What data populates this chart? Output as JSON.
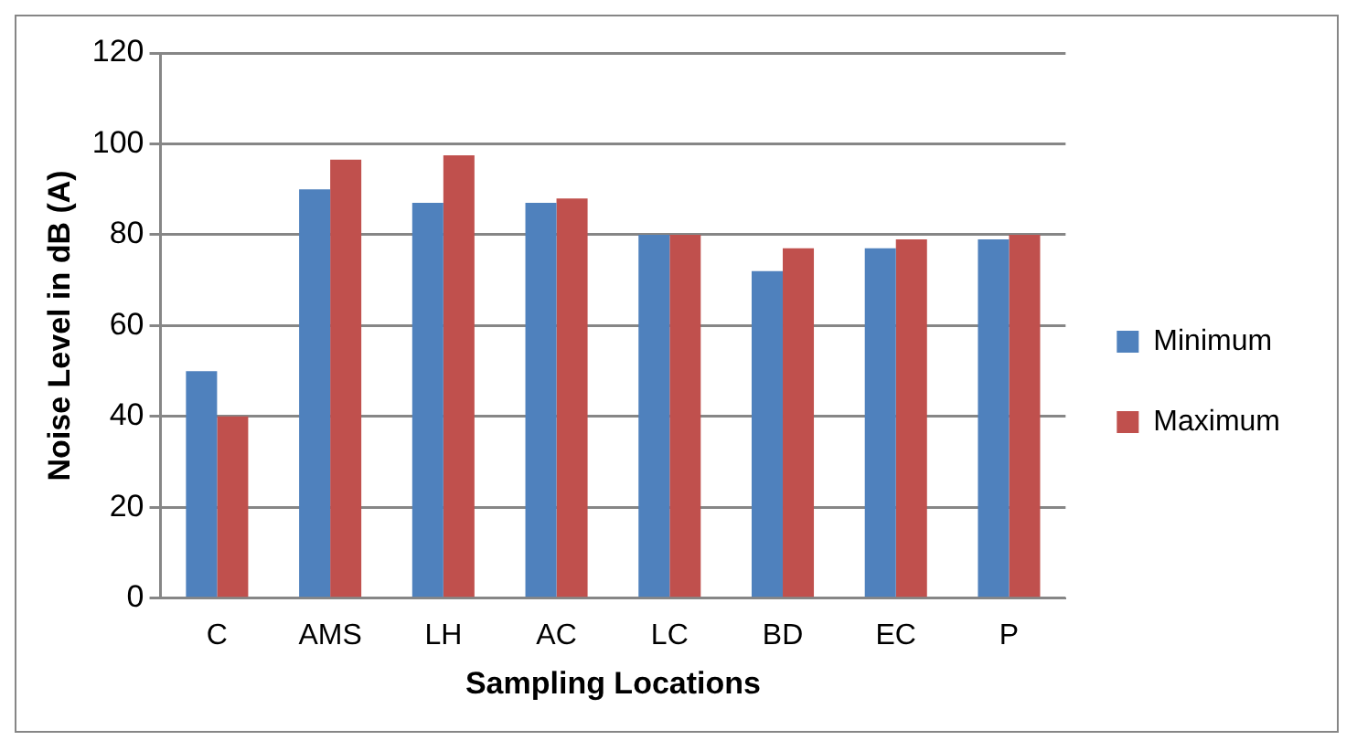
{
  "chart_data": {
    "type": "bar",
    "xlabel": "Sampling Locations",
    "ylabel": "Noise Level in dB (A)",
    "categories": [
      "C",
      "AMS",
      "LH",
      "AC",
      "LC",
      "BD",
      "EC",
      "P"
    ],
    "series": [
      {
        "name": "Minimum",
        "color": "#4f81bd",
        "values": [
          50,
          90,
          87,
          87,
          80,
          72,
          77,
          79
        ]
      },
      {
        "name": "Maximum",
        "color": "#c0504d",
        "values": [
          40,
          96.5,
          97.5,
          88,
          80,
          77,
          79,
          80
        ]
      }
    ],
    "ylim": [
      0,
      120
    ],
    "yticks": [
      0,
      20,
      40,
      60,
      80,
      100,
      120
    ],
    "grid": "y",
    "legend": "right"
  }
}
